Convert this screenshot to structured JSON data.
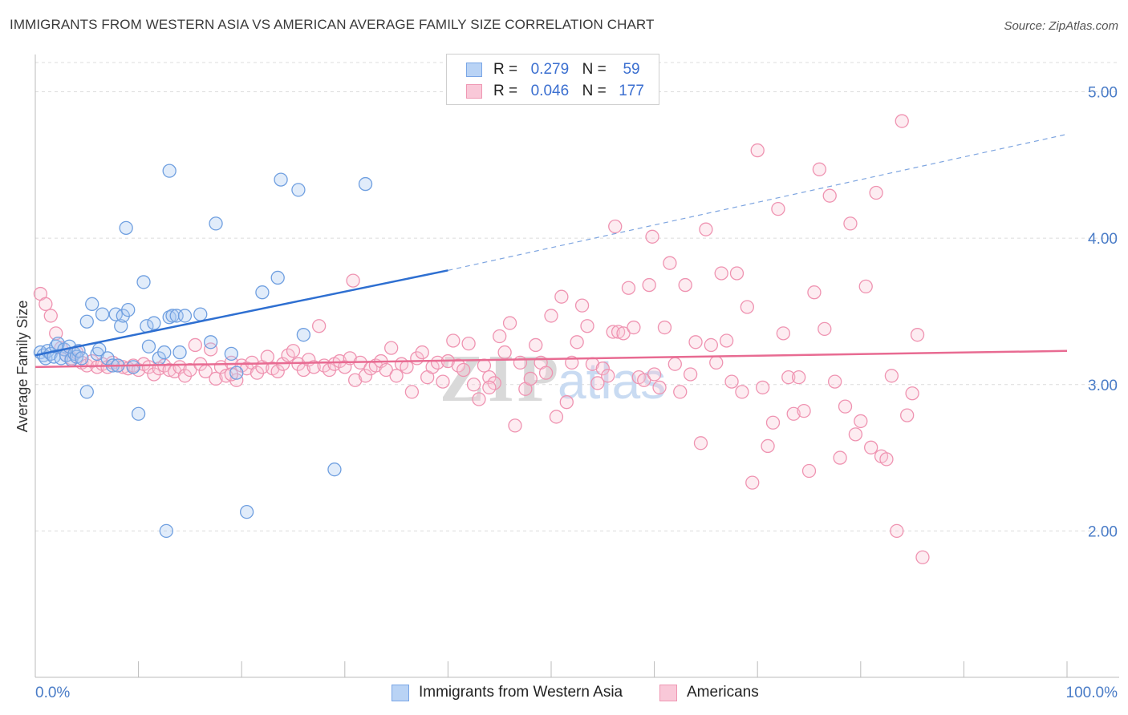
{
  "header": {
    "title": "IMMIGRANTS FROM WESTERN ASIA VS AMERICAN AVERAGE FAMILY SIZE CORRELATION CHART",
    "source": "Source: ZipAtlas.com"
  },
  "watermark": {
    "zip": "ZIP",
    "atlas": "atlas"
  },
  "legend": {
    "rows": [
      {
        "r_label": "R =",
        "r_value": "0.279",
        "n_label": "N =",
        "n_value": "59",
        "fill": "#b9d3f5",
        "stroke": "#7aa6e6"
      },
      {
        "r_label": "R =",
        "r_value": "0.046",
        "n_label": "N =",
        "n_value": "177",
        "fill": "#f9c8d8",
        "stroke": "#ef97b3"
      }
    ]
  },
  "bottom_legend": {
    "series1": "Immigrants from Western Asia",
    "series2": "Americans"
  },
  "chart_data": {
    "type": "scatter",
    "title": "IMMIGRANTS FROM WESTERN ASIA VS AMERICAN AVERAGE FAMILY SIZE CORRELATION CHART",
    "ylabel": "Average Family Size",
    "xlim": [
      0,
      100
    ],
    "ylim": [
      1.0,
      5.2
    ],
    "x_tick_labels": {
      "left": "0.0%",
      "right": "100.0%"
    },
    "y_ticks": [
      2.0,
      3.0,
      4.0,
      5.0
    ],
    "y_tick_labels": [
      "2.00",
      "3.00",
      "4.00",
      "5.00"
    ],
    "grid": true,
    "series": [
      {
        "name": "Immigrants from Western Asia",
        "color": "#6f9fe0",
        "fill": "rgba(168,200,242,0.35)",
        "trend": {
          "x": [
            0,
            40
          ],
          "y": [
            3.2,
            3.78
          ],
          "color": "#2e6fd1"
        },
        "trend_extension": {
          "x": [
            40,
            100
          ],
          "y": [
            3.78,
            4.71
          ]
        },
        "points": [
          [
            0.5,
            3.22
          ],
          [
            0.8,
            3.2
          ],
          [
            1.0,
            3.18
          ],
          [
            1.2,
            3.23
          ],
          [
            1.5,
            3.21
          ],
          [
            1.8,
            3.19
          ],
          [
            2.0,
            3.26
          ],
          [
            2.2,
            3.28
          ],
          [
            2.5,
            3.18
          ],
          [
            2.8,
            3.24
          ],
          [
            3.0,
            3.2
          ],
          [
            3.3,
            3.26
          ],
          [
            3.5,
            3.17
          ],
          [
            3.8,
            3.21
          ],
          [
            4.0,
            3.19
          ],
          [
            4.2,
            3.23
          ],
          [
            4.5,
            3.18
          ],
          [
            5.0,
            3.43
          ],
          [
            5.5,
            3.55
          ],
          [
            6.0,
            3.21
          ],
          [
            6.2,
            3.24
          ],
          [
            6.5,
            3.48
          ],
          [
            7.0,
            3.18
          ],
          [
            7.5,
            3.13
          ],
          [
            7.8,
            3.48
          ],
          [
            8.0,
            3.13
          ],
          [
            8.3,
            3.4
          ],
          [
            8.5,
            3.47
          ],
          [
            9.0,
            3.51
          ],
          [
            9.5,
            3.12
          ],
          [
            10.0,
            2.8
          ],
          [
            10.5,
            3.7
          ],
          [
            10.8,
            3.4
          ],
          [
            11.0,
            3.26
          ],
          [
            11.5,
            3.42
          ],
          [
            12.0,
            3.18
          ],
          [
            12.5,
            3.22
          ],
          [
            13.0,
            3.46
          ],
          [
            13.3,
            3.47
          ],
          [
            13.7,
            3.47
          ],
          [
            14.0,
            3.22
          ],
          [
            8.8,
            4.07
          ],
          [
            13.0,
            4.46
          ],
          [
            17.5,
            4.1
          ],
          [
            23.8,
            4.4
          ],
          [
            25.5,
            4.33
          ],
          [
            32.0,
            4.37
          ],
          [
            14.5,
            3.47
          ],
          [
            16.0,
            3.48
          ],
          [
            17.0,
            3.29
          ],
          [
            19.0,
            3.21
          ],
          [
            19.5,
            3.08
          ],
          [
            22.0,
            3.63
          ],
          [
            23.5,
            3.73
          ],
          [
            26.0,
            3.34
          ],
          [
            12.7,
            2.0
          ],
          [
            20.5,
            2.13
          ],
          [
            29.0,
            2.42
          ],
          [
            5.0,
            2.95
          ]
        ]
      },
      {
        "name": "Americans",
        "color": "#ef93b1",
        "fill": "rgba(249,200,216,0.35)",
        "trend": {
          "x": [
            0,
            100
          ],
          "y": [
            3.12,
            3.23
          ],
          "color": "#e86b92"
        },
        "points": [
          [
            0.5,
            3.62
          ],
          [
            1.0,
            3.55
          ],
          [
            1.5,
            3.47
          ],
          [
            2.0,
            3.35
          ],
          [
            2.5,
            3.25
          ],
          [
            3.0,
            3.2
          ],
          [
            3.5,
            3.18
          ],
          [
            4.0,
            3.22
          ],
          [
            4.5,
            3.15
          ],
          [
            5.0,
            3.13
          ],
          [
            5.5,
            3.16
          ],
          [
            6.0,
            3.12
          ],
          [
            6.5,
            3.14
          ],
          [
            7.0,
            3.12
          ],
          [
            7.5,
            3.15
          ],
          [
            8.0,
            3.13
          ],
          [
            8.5,
            3.12
          ],
          [
            9.0,
            3.11
          ],
          [
            9.5,
            3.13
          ],
          [
            10.0,
            3.1
          ],
          [
            10.5,
            3.14
          ],
          [
            11.0,
            3.12
          ],
          [
            11.5,
            3.07
          ],
          [
            12.0,
            3.11
          ],
          [
            12.5,
            3.13
          ],
          [
            13.0,
            3.1
          ],
          [
            13.5,
            3.09
          ],
          [
            14.0,
            3.12
          ],
          [
            14.5,
            3.06
          ],
          [
            15.0,
            3.1
          ],
          [
            15.5,
            3.27
          ],
          [
            16.0,
            3.14
          ],
          [
            16.5,
            3.09
          ],
          [
            17.0,
            3.24
          ],
          [
            17.5,
            3.04
          ],
          [
            18.0,
            3.12
          ],
          [
            18.5,
            3.06
          ],
          [
            19.0,
            3.15
          ],
          [
            19.5,
            3.03
          ],
          [
            20.0,
            3.13
          ],
          [
            20.5,
            3.11
          ],
          [
            21.0,
            3.15
          ],
          [
            21.5,
            3.08
          ],
          [
            22.0,
            3.12
          ],
          [
            22.5,
            3.19
          ],
          [
            23.0,
            3.11
          ],
          [
            23.5,
            3.09
          ],
          [
            24.0,
            3.14
          ],
          [
            24.5,
            3.2
          ],
          [
            25.0,
            3.23
          ],
          [
            25.5,
            3.14
          ],
          [
            26.0,
            3.1
          ],
          [
            26.5,
            3.17
          ],
          [
            27.0,
            3.12
          ],
          [
            27.5,
            3.4
          ],
          [
            28.0,
            3.13
          ],
          [
            28.5,
            3.1
          ],
          [
            29.0,
            3.14
          ],
          [
            29.5,
            3.16
          ],
          [
            30.0,
            3.12
          ],
          [
            30.5,
            3.18
          ],
          [
            31.0,
            3.03
          ],
          [
            31.5,
            3.15
          ],
          [
            32.0,
            3.06
          ],
          [
            32.5,
            3.11
          ],
          [
            33.0,
            3.13
          ],
          [
            33.5,
            3.16
          ],
          [
            34.0,
            3.1
          ],
          [
            34.5,
            3.25
          ],
          [
            35.0,
            3.06
          ],
          [
            35.5,
            3.14
          ],
          [
            36.0,
            3.12
          ],
          [
            36.5,
            2.95
          ],
          [
            37.0,
            3.18
          ],
          [
            37.5,
            3.22
          ],
          [
            38.0,
            3.05
          ],
          [
            38.5,
            3.12
          ],
          [
            39.0,
            3.15
          ],
          [
            39.5,
            3.02
          ],
          [
            40.0,
            3.16
          ],
          [
            40.5,
            3.3
          ],
          [
            41.0,
            3.13
          ],
          [
            41.5,
            3.1
          ],
          [
            42.0,
            3.28
          ],
          [
            42.5,
            3.0
          ],
          [
            43.0,
            2.9
          ],
          [
            43.5,
            3.13
          ],
          [
            44.0,
            3.05
          ],
          [
            44.5,
            3.01
          ],
          [
            45.0,
            3.33
          ],
          [
            45.5,
            3.22
          ],
          [
            46.0,
            3.42
          ],
          [
            46.5,
            2.72
          ],
          [
            47.0,
            3.15
          ],
          [
            47.5,
            2.97
          ],
          [
            48.0,
            3.04
          ],
          [
            48.5,
            3.27
          ],
          [
            49.0,
            3.15
          ],
          [
            49.5,
            3.08
          ],
          [
            50.0,
            3.47
          ],
          [
            50.5,
            2.78
          ],
          [
            51.0,
            3.6
          ],
          [
            51.5,
            2.88
          ],
          [
            52.0,
            3.15
          ],
          [
            52.5,
            3.29
          ],
          [
            53.0,
            3.54
          ],
          [
            53.5,
            3.4
          ],
          [
            54.0,
            3.14
          ],
          [
            54.5,
            3.01
          ],
          [
            55.0,
            3.11
          ],
          [
            55.5,
            3.06
          ],
          [
            56.0,
            3.36
          ],
          [
            56.5,
            3.36
          ],
          [
            57.0,
            3.35
          ],
          [
            57.5,
            3.66
          ],
          [
            58.0,
            3.39
          ],
          [
            58.5,
            3.05
          ],
          [
            59.0,
            3.03
          ],
          [
            59.5,
            3.68
          ],
          [
            60.0,
            3.07
          ],
          [
            60.5,
            2.98
          ],
          [
            61.0,
            3.39
          ],
          [
            61.5,
            3.83
          ],
          [
            62.0,
            3.14
          ],
          [
            62.5,
            2.95
          ],
          [
            63.0,
            3.68
          ],
          [
            63.5,
            3.07
          ],
          [
            64.0,
            3.29
          ],
          [
            64.5,
            2.6
          ],
          [
            65.0,
            4.06
          ],
          [
            65.5,
            3.27
          ],
          [
            66.0,
            3.15
          ],
          [
            66.5,
            3.76
          ],
          [
            67.0,
            3.3
          ],
          [
            67.5,
            3.02
          ],
          [
            68.0,
            3.76
          ],
          [
            68.5,
            2.95
          ],
          [
            69.0,
            3.53
          ],
          [
            69.5,
            2.33
          ],
          [
            70.0,
            4.6
          ],
          [
            70.5,
            2.98
          ],
          [
            71.0,
            2.58
          ],
          [
            71.5,
            2.74
          ],
          [
            72.0,
            4.2
          ],
          [
            72.5,
            3.35
          ],
          [
            73.0,
            3.05
          ],
          [
            73.5,
            2.8
          ],
          [
            74.0,
            3.05
          ],
          [
            74.5,
            2.82
          ],
          [
            75.0,
            2.41
          ],
          [
            75.5,
            3.63
          ],
          [
            76.0,
            4.47
          ],
          [
            76.5,
            3.38
          ],
          [
            77.0,
            4.29
          ],
          [
            77.5,
            3.02
          ],
          [
            78.0,
            2.5
          ],
          [
            78.5,
            2.85
          ],
          [
            79.0,
            4.1
          ],
          [
            79.5,
            2.66
          ],
          [
            80.0,
            2.75
          ],
          [
            80.5,
            3.67
          ],
          [
            81.0,
            2.57
          ],
          [
            81.5,
            4.31
          ],
          [
            82.0,
            2.51
          ],
          [
            82.5,
            2.49
          ],
          [
            83.0,
            3.06
          ],
          [
            83.5,
            2.0
          ],
          [
            84.0,
            4.8
          ],
          [
            84.5,
            2.79
          ],
          [
            85.0,
            2.94
          ],
          [
            85.5,
            3.34
          ],
          [
            86.0,
            1.82
          ],
          [
            44.0,
            2.98
          ],
          [
            30.8,
            3.71
          ],
          [
            19.0,
            3.07
          ],
          [
            56.2,
            4.08
          ],
          [
            59.8,
            4.01
          ]
        ]
      }
    ]
  }
}
